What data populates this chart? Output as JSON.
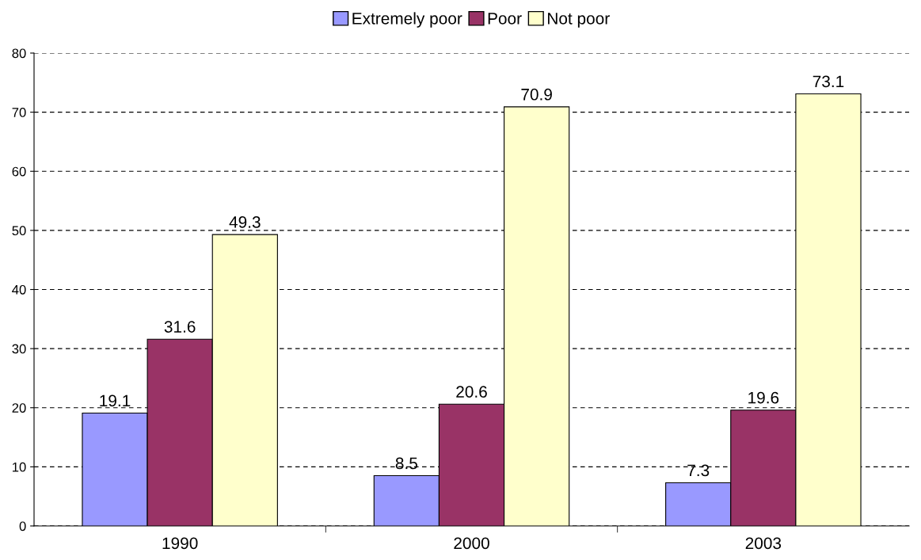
{
  "chart_data": {
    "type": "bar",
    "categories": [
      "1990",
      "2000",
      "2003"
    ],
    "series": [
      {
        "name": "Extremely poor",
        "color": "#9999ff",
        "values": [
          19.1,
          8.5,
          7.3
        ]
      },
      {
        "name": "Poor",
        "color": "#993366",
        "values": [
          31.6,
          20.6,
          19.6
        ]
      },
      {
        "name": "Not poor",
        "color": "#ffffcc",
        "values": [
          49.3,
          70.9,
          73.1
        ]
      }
    ],
    "ylim": [
      0,
      80
    ],
    "yticks": [
      0,
      10,
      20,
      30,
      40,
      50,
      60,
      70,
      80
    ],
    "grid": "y",
    "legend": "top",
    "data_labels": true
  }
}
